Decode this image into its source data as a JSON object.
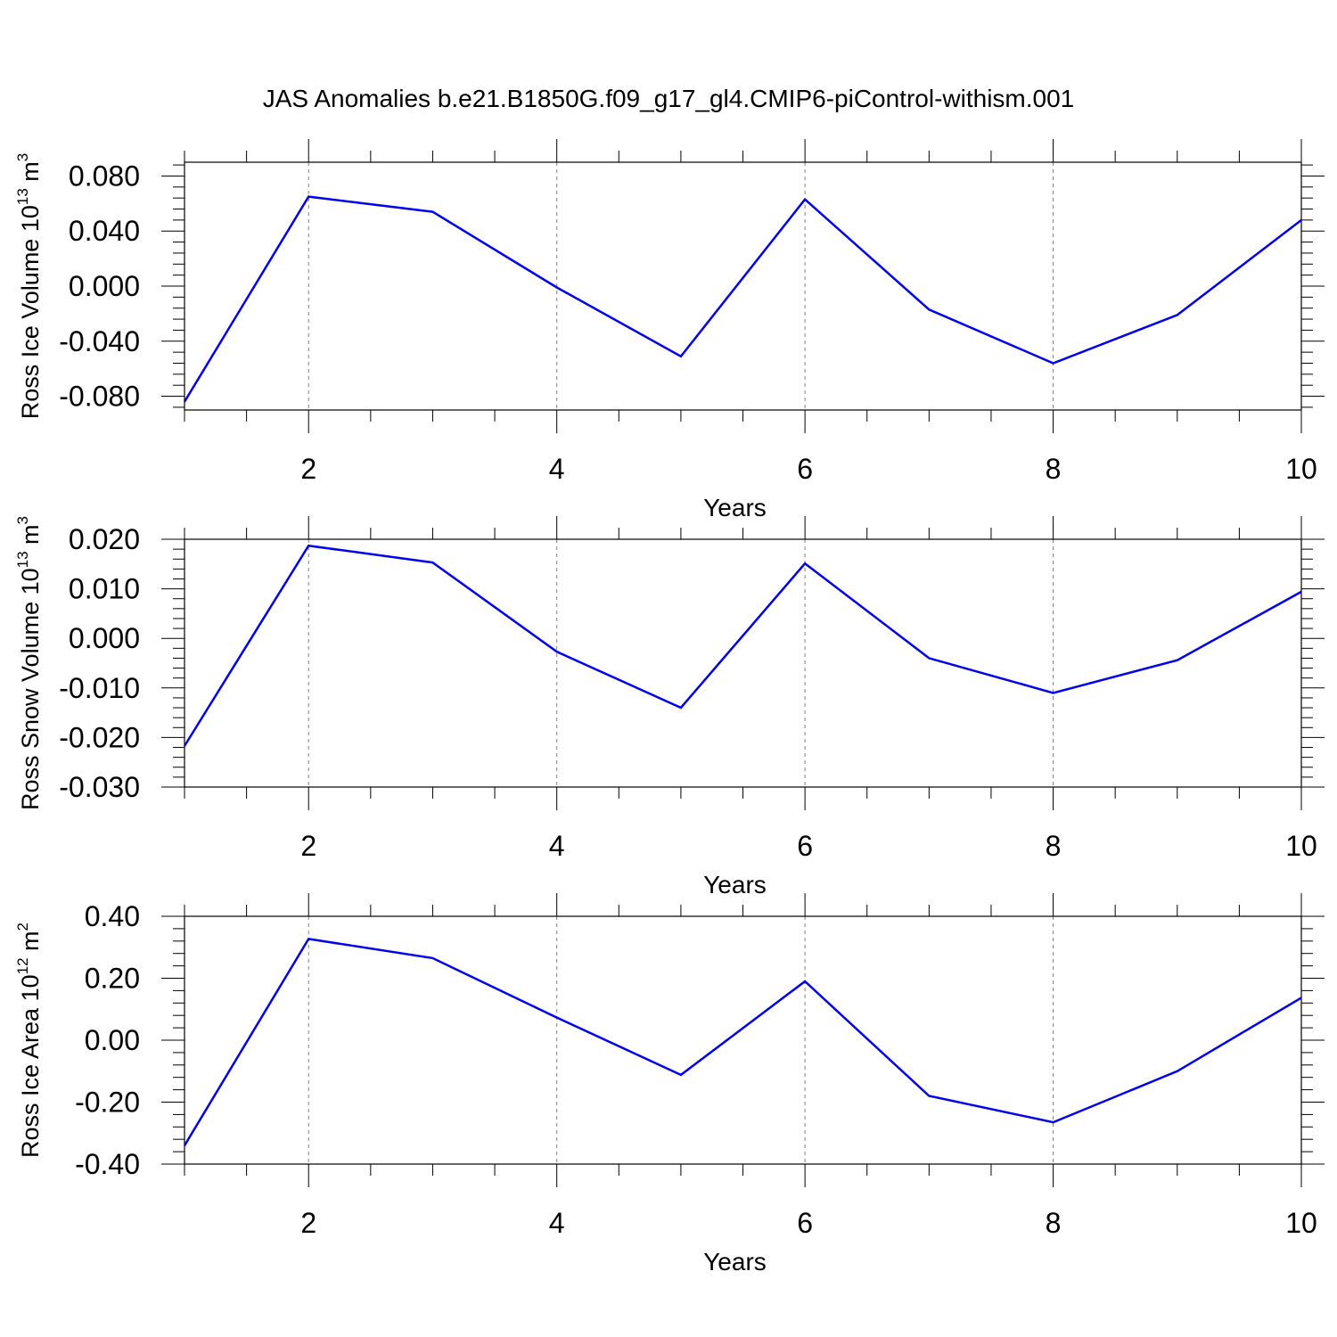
{
  "title": "JAS Anomalies b.e21.B1850G.f09_g17_gl4.CMIP6-piControl-withism.001",
  "chart_data": [
    {
      "type": "line",
      "ylabel": "Ross Ice Volume 10",
      "ylabel_exp": "13",
      "ylabel_unit": " m",
      "ylabel_unit_exp": "3",
      "xlabel": "Years",
      "xlim": [
        1,
        10
      ],
      "ylim": [
        -0.09,
        0.09
      ],
      "xticks": [
        2,
        4,
        6,
        8,
        10
      ],
      "yticks": [
        0.08,
        0.04,
        0.0,
        -0.04,
        -0.08
      ],
      "yticklabels": [
        "0.080",
        "0.040",
        "0.000",
        "-0.040",
        "-0.080"
      ],
      "x": [
        1,
        2,
        3,
        4,
        5,
        6,
        7,
        8,
        9,
        10
      ],
      "values": [
        -0.084,
        0.065,
        0.054,
        -0.001,
        -0.051,
        0.063,
        -0.017,
        -0.056,
        -0.021,
        0.048
      ],
      "line_color": "#0000ee",
      "grid": "vertical dashed at major x ticks"
    },
    {
      "type": "line",
      "ylabel": "Ross Snow Volume 10",
      "ylabel_exp": "13",
      "ylabel_unit": " m",
      "ylabel_unit_exp": "3",
      "xlabel": "Years",
      "xlim": [
        1,
        10
      ],
      "ylim": [
        -0.03,
        0.02
      ],
      "xticks": [
        2,
        4,
        6,
        8,
        10
      ],
      "yticks": [
        0.02,
        0.01,
        0.0,
        -0.01,
        -0.02,
        -0.03
      ],
      "yticklabels": [
        "0.020",
        "0.010",
        "0.000",
        "-0.010",
        "-0.020",
        "-0.030"
      ],
      "x": [
        1,
        2,
        3,
        4,
        5,
        6,
        7,
        8,
        9,
        10
      ],
      "values": [
        -0.0217,
        0.0187,
        0.0153,
        -0.0027,
        -0.014,
        0.0151,
        -0.004,
        -0.011,
        -0.0044,
        0.0094
      ],
      "line_color": "#0000ee",
      "grid": "vertical dashed at major x ticks"
    },
    {
      "type": "line",
      "ylabel": "Ross Ice Area 10",
      "ylabel_exp": "12",
      "ylabel_unit": " m",
      "ylabel_unit_exp": "2",
      "xlabel": "Years",
      "xlim": [
        1,
        10
      ],
      "ylim": [
        -0.4,
        0.4
      ],
      "xticks": [
        2,
        4,
        6,
        8,
        10
      ],
      "yticks": [
        0.4,
        0.2,
        0.0,
        -0.2,
        -0.4
      ],
      "yticklabels": [
        "0.40",
        "0.20",
        "0.00",
        "-0.20",
        "-0.40"
      ],
      "x": [
        1,
        2,
        3,
        4,
        5,
        6,
        7,
        8,
        9,
        10
      ],
      "values": [
        -0.34,
        0.327,
        0.265,
        0.073,
        -0.112,
        0.19,
        -0.18,
        -0.265,
        -0.1,
        0.137
      ],
      "line_color": "#0000ee",
      "grid": "vertical dashed at major x ticks"
    }
  ]
}
